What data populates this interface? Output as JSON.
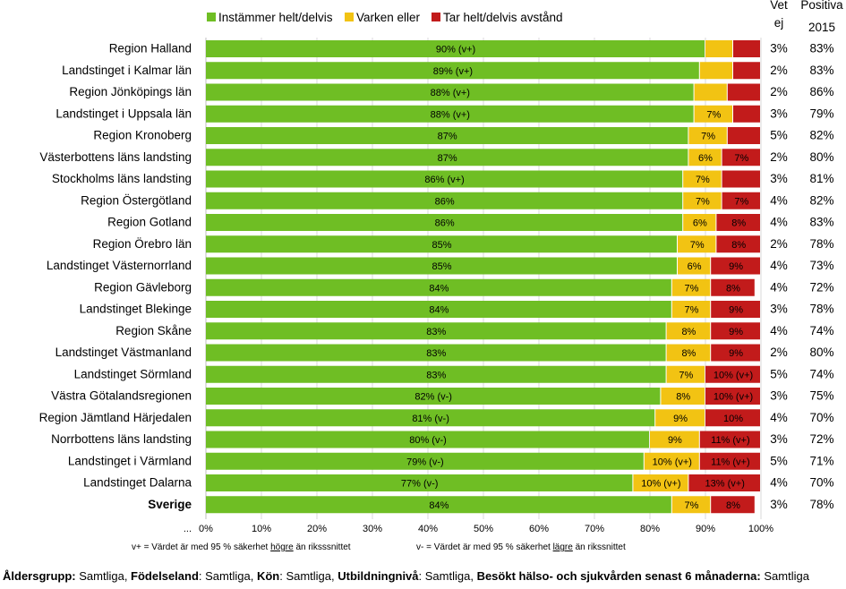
{
  "chart_data": {
    "type": "bar",
    "orientation": "horizontal",
    "stacked": true,
    "legend": [
      {
        "name": "Instämmer helt/delvis",
        "color": "#6fbe24"
      },
      {
        "name": "Varken eller",
        "color": "#f2c313"
      },
      {
        "name": "Tar helt/delvis avstånd",
        "color": "#c21b1b"
      }
    ],
    "column_headers": {
      "vet_ej": [
        "Vet",
        "ej"
      ],
      "positiva": [
        "Positiva",
        "2015"
      ]
    },
    "xlim": [
      0,
      100
    ],
    "x_ticks": [
      "0%",
      "10%",
      "20%",
      "30%",
      "40%",
      "50%",
      "60%",
      "70%",
      "80%",
      "90%",
      "100%"
    ],
    "rows": [
      {
        "label": "Region Halland",
        "values": [
          90,
          5,
          5
        ],
        "labels": [
          "90% (v+)",
          "",
          ""
        ],
        "vet_ej": "3%",
        "positiva_2015": "83%"
      },
      {
        "label": "Landstinget i Kalmar län",
        "values": [
          89,
          6,
          5
        ],
        "labels": [
          "89% (v+)",
          "",
          ""
        ],
        "vet_ej": "2%",
        "positiva_2015": "83%"
      },
      {
        "label": "Region Jönköpings län",
        "values": [
          88,
          6,
          6
        ],
        "labels": [
          "88% (v+)",
          "",
          ""
        ],
        "vet_ej": "2%",
        "positiva_2015": "86%"
      },
      {
        "label": "Landstinget i Uppsala län",
        "values": [
          88,
          7,
          5
        ],
        "labels": [
          "88% (v+)",
          "7%",
          ""
        ],
        "vet_ej": "3%",
        "positiva_2015": "79%"
      },
      {
        "label": "Region Kronoberg",
        "values": [
          87,
          7,
          6
        ],
        "labels": [
          "87%",
          "7%",
          ""
        ],
        "vet_ej": "5%",
        "positiva_2015": "82%"
      },
      {
        "label": "Västerbottens läns landsting",
        "values": [
          87,
          6,
          7
        ],
        "labels": [
          "87%",
          "6%",
          "7%"
        ],
        "vet_ej": "2%",
        "positiva_2015": "80%"
      },
      {
        "label": "Stockholms läns landsting",
        "values": [
          86,
          7,
          7
        ],
        "labels": [
          "86% (v+)",
          "7%",
          ""
        ],
        "vet_ej": "3%",
        "positiva_2015": "81%"
      },
      {
        "label": "Region Östergötland",
        "values": [
          86,
          7,
          7
        ],
        "labels": [
          "86%",
          "7%",
          "7%"
        ],
        "vet_ej": "4%",
        "positiva_2015": "82%"
      },
      {
        "label": "Region Gotland",
        "values": [
          86,
          6,
          8
        ],
        "labels": [
          "86%",
          "6%",
          "8%"
        ],
        "vet_ej": "4%",
        "positiva_2015": "83%"
      },
      {
        "label": "Region Örebro län",
        "values": [
          85,
          7,
          8
        ],
        "labels": [
          "85%",
          "7%",
          "8%"
        ],
        "vet_ej": "2%",
        "positiva_2015": "78%"
      },
      {
        "label": "Landstinget Västernorrland",
        "values": [
          85,
          6,
          9
        ],
        "labels": [
          "85%",
          "6%",
          "9%"
        ],
        "vet_ej": "4%",
        "positiva_2015": "73%"
      },
      {
        "label": "Region Gävleborg",
        "values": [
          84,
          7,
          8
        ],
        "labels": [
          "84%",
          "7%",
          "8%"
        ],
        "vet_ej": "4%",
        "positiva_2015": "72%"
      },
      {
        "label": "Landstinget Blekinge",
        "values": [
          84,
          7,
          9
        ],
        "labels": [
          "84%",
          "7%",
          "9%"
        ],
        "vet_ej": "3%",
        "positiva_2015": "78%"
      },
      {
        "label": "Region Skåne",
        "values": [
          83,
          8,
          9
        ],
        "labels": [
          "83%",
          "8%",
          "9%"
        ],
        "vet_ej": "4%",
        "positiva_2015": "74%"
      },
      {
        "label": "Landstinget Västmanland",
        "values": [
          83,
          8,
          9
        ],
        "labels": [
          "83%",
          "8%",
          "9%"
        ],
        "vet_ej": "2%",
        "positiva_2015": "80%"
      },
      {
        "label": "Landstinget Sörmland",
        "values": [
          83,
          7,
          10
        ],
        "labels": [
          "83%",
          "7%",
          "10% (v+)"
        ],
        "vet_ej": "5%",
        "positiva_2015": "74%"
      },
      {
        "label": "Västra Götalandsregionen",
        "values": [
          82,
          8,
          10
        ],
        "labels": [
          "82% (v-)",
          "8%",
          "10% (v+)"
        ],
        "vet_ej": "3%",
        "positiva_2015": "75%"
      },
      {
        "label": "Region Jämtland Härjedalen",
        "values": [
          81,
          9,
          10
        ],
        "labels": [
          "81% (v-)",
          "9%",
          "10%"
        ],
        "vet_ej": "4%",
        "positiva_2015": "70%"
      },
      {
        "label": "Norrbottens läns landsting",
        "values": [
          80,
          9,
          11
        ],
        "labels": [
          "80% (v-)",
          "9%",
          "11% (v+)"
        ],
        "vet_ej": "3%",
        "positiva_2015": "72%"
      },
      {
        "label": "Landstinget i Värmland",
        "values": [
          79,
          10,
          11
        ],
        "labels": [
          "79% (v-)",
          "10% (v+)",
          "11% (v+)"
        ],
        "vet_ej": "5%",
        "positiva_2015": "71%"
      },
      {
        "label": "Landstinget Dalarna",
        "values": [
          77,
          10,
          13
        ],
        "labels": [
          "77% (v-)",
          "10% (v+)",
          "13% (v+)"
        ],
        "vet_ej": "4%",
        "positiva_2015": "70%"
      },
      {
        "label": "Sverige",
        "values": [
          84,
          7,
          8
        ],
        "labels": [
          "84%",
          "7%",
          "8%"
        ],
        "vet_ej": "3%",
        "positiva_2015": "78%",
        "bold": true
      }
    ],
    "ellipsis": "...",
    "notes": {
      "vplus": {
        "prefix": "v+ = Värdet är med 95 % säkerhet ",
        "keyword": "högre",
        "suffix": " än riksssnittet"
      },
      "vminus": {
        "prefix": "v-  = Värdet är med 95 % säkerhet ",
        "keyword": "lägre",
        "suffix": " än rikssnittet"
      }
    }
  },
  "footer": [
    {
      "key": "Åldersgrupp:",
      "value": " Samtliga, "
    },
    {
      "key": "Födelseland",
      "value": ": Samtliga, "
    },
    {
      "key": "Kön",
      "value": ": Samtliga, "
    },
    {
      "key": "Utbildningnivå",
      "value": ": Samtliga, "
    },
    {
      "key": "Besökt hälso- och sjukvården senast 6 månaderna:",
      "value": " Samtliga"
    }
  ]
}
